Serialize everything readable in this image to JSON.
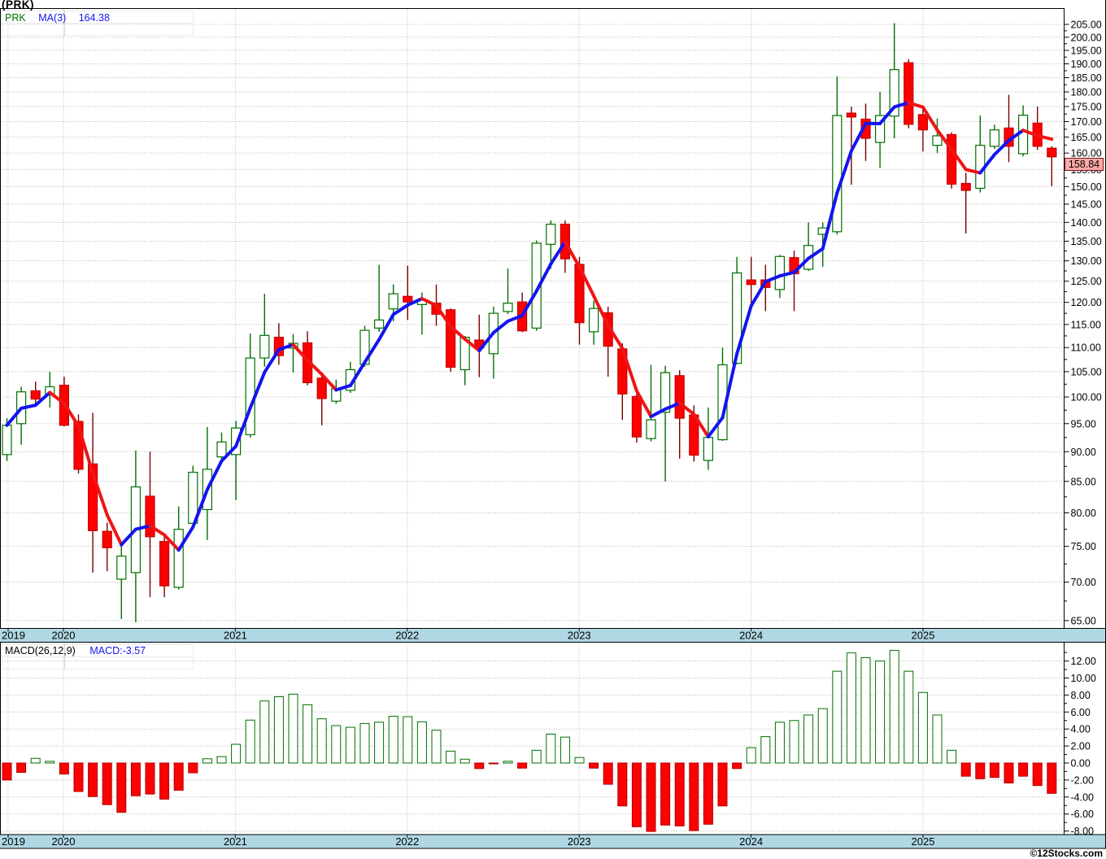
{
  "window": {
    "title": "(PRK)"
  },
  "main_chart": {
    "legend": {
      "symbol": "PRK",
      "ma_label": "MA(3)",
      "ma_value": "164.38"
    },
    "last_price": "158.84",
    "y_axis_labels": [
      "205.00",
      "200.00",
      "195.00",
      "190.00",
      "185.00",
      "180.00",
      "175.00",
      "170.00",
      "165.00",
      "160.00",
      "155.00",
      "150.00",
      "145.00",
      "140.00",
      "135.00",
      "130.00",
      "125.00",
      "120.00",
      "115.00",
      "110.00",
      "105.00",
      "100.00",
      "95.00",
      "90.00",
      "85.00",
      "80.00",
      "75.00",
      "70.00",
      "65.00"
    ]
  },
  "macd_chart": {
    "legend": {
      "label": "MACD(26,12,9)",
      "value_label": "MACD:-3.57"
    },
    "y_axis_labels": [
      "12.00",
      "10.00",
      "8.00",
      "6.00",
      "4.00",
      "2.00",
      "0.00",
      "-2.00",
      "-4.00",
      "-6.00",
      "-8.00"
    ]
  },
  "x_axis": {
    "years": [
      "2019",
      "2020",
      "2021",
      "2022",
      "2023",
      "2024",
      "2025"
    ]
  },
  "footer": {
    "credit": "©12Stocks.com"
  },
  "colors": {
    "up_border": "#007000",
    "up_fill": "#FFFFFF",
    "up_wick": "#007000",
    "down_fill": "#FF0000",
    "down_border": "#C40000",
    "down_wick": "#7A0000",
    "ma_up": "#1414F0",
    "ma_down": "#F01414",
    "band": "#B0D8E4",
    "grid": "#B8B8B8",
    "axis": "#000000",
    "macd_pos_border": "#006F00",
    "macd_pos_fill": "#FFFFFF",
    "macd_neg_fill": "#FF0000",
    "macd_neg_border": "#B00000",
    "badge_bg": "#FFA8A8",
    "badge_border": "#7C1010",
    "legend_symbol": "#007000",
    "legend_value": "#1414F0"
  },
  "chart_data": [
    {
      "type": "candlestick",
      "symbol": "PRK",
      "interval": "monthly",
      "start_month": "2019-09",
      "end_month": "2025-10",
      "yscale": "log",
      "ylim": [
        65,
        205
      ],
      "y_tick_step": 5,
      "last_close": 158.84,
      "ohlc": [
        [
          89.5,
          96.0,
          88.4,
          94.7
        ],
        [
          95.0,
          102.0,
          91.2,
          101.0
        ],
        [
          101.2,
          103.0,
          98.3,
          99.6
        ],
        [
          100.4,
          105.0,
          98.0,
          102.0
        ],
        [
          102.3,
          104.0,
          94.5,
          94.7
        ],
        [
          95.4,
          96.7,
          86.3,
          87.0
        ],
        [
          87.9,
          97.0,
          71.3,
          77.3
        ],
        [
          77.2,
          78.5,
          71.5,
          74.8
        ],
        [
          70.4,
          75.0,
          65.2,
          73.6
        ],
        [
          71.3,
          90.2,
          64.8,
          84.1
        ],
        [
          82.6,
          90.0,
          68.0,
          76.4
        ],
        [
          75.7,
          76.5,
          68.0,
          69.5
        ],
        [
          69.3,
          81.0,
          69.0,
          77.5
        ],
        [
          78.4,
          87.6,
          77.9,
          86.5
        ],
        [
          80.5,
          94.4,
          75.9,
          87.0
        ],
        [
          89.1,
          93.4,
          88.4,
          91.7
        ],
        [
          89.5,
          95.5,
          82.0,
          94.2
        ],
        [
          93.0,
          113.0,
          92.5,
          107.8
        ],
        [
          107.8,
          122.0,
          106.0,
          112.6
        ],
        [
          112.2,
          115.3,
          106.4,
          108.3
        ],
        [
          109.9,
          112.9,
          104.8,
          110.9
        ],
        [
          111.0,
          113.5,
          102.3,
          102.8
        ],
        [
          103.7,
          104.2,
          94.7,
          99.7
        ],
        [
          99.2,
          103.4,
          98.7,
          101.6
        ],
        [
          101.3,
          107.0,
          100.8,
          105.4
        ],
        [
          106.5,
          114.7,
          106.0,
          113.7
        ],
        [
          114.2,
          129.0,
          113.4,
          116.0
        ],
        [
          118.5,
          124.2,
          115.7,
          122.0
        ],
        [
          121.4,
          128.8,
          116.0,
          120.1
        ],
        [
          119.5,
          122.3,
          112.8,
          120.5
        ],
        [
          119.8,
          124.2,
          114.7,
          117.3
        ],
        [
          118.3,
          118.6,
          105.0,
          105.9
        ],
        [
          105.4,
          112.5,
          102.3,
          112.2
        ],
        [
          111.6,
          117.2,
          103.9,
          109.9
        ],
        [
          108.7,
          119.0,
          103.6,
          117.5
        ],
        [
          117.9,
          128.1,
          117.3,
          119.8
        ],
        [
          120.1,
          122.3,
          113.3,
          113.6
        ],
        [
          114.2,
          135.2,
          113.6,
          134.5
        ],
        [
          134.2,
          140.5,
          128.0,
          139.5
        ],
        [
          139.5,
          140.5,
          127.0,
          130.5
        ],
        [
          129.1,
          131.0,
          110.6,
          115.4
        ],
        [
          113.4,
          120.4,
          110.6,
          118.6
        ],
        [
          117.6,
          119.0,
          104.0,
          110.3
        ],
        [
          109.7,
          110.9,
          95.7,
          100.6
        ],
        [
          100.1,
          100.6,
          91.6,
          92.6
        ],
        [
          92.3,
          106.4,
          91.8,
          95.7
        ],
        [
          97.1,
          106.2,
          85.0,
          104.8
        ],
        [
          104.2,
          105.3,
          88.8,
          96.0
        ],
        [
          96.6,
          98.4,
          88.3,
          89.4
        ],
        [
          88.5,
          98.0,
          86.9,
          92.5
        ],
        [
          92.1,
          110.0,
          91.9,
          106.4
        ],
        [
          106.7,
          131.0,
          106.5,
          127.0
        ],
        [
          125.3,
          131.0,
          118.3,
          124.2
        ],
        [
          125.3,
          129.0,
          118.0,
          123.5
        ],
        [
          123.0,
          131.5,
          121.0,
          131.1
        ],
        [
          130.8,
          132.6,
          118.0,
          126.8
        ],
        [
          127.9,
          140.0,
          127.5,
          133.9
        ],
        [
          136.8,
          140.0,
          128.5,
          138.5
        ],
        [
          137.5,
          185.5,
          136.8,
          172.0
        ],
        [
          172.8,
          175.0,
          150.5,
          171.5
        ],
        [
          170.8,
          176.0,
          157.6,
          164.6
        ],
        [
          163.3,
          180.0,
          155.5,
          172.0
        ],
        [
          171.8,
          205.5,
          164.6,
          187.9
        ],
        [
          190.4,
          191.7,
          167.8,
          169.1
        ],
        [
          172.3,
          175.0,
          160.5,
          167.3
        ],
        [
          162.4,
          171.0,
          160.0,
          165.4
        ],
        [
          165.8,
          166.5,
          149.4,
          150.7
        ],
        [
          150.9,
          154.0,
          137.0,
          148.9
        ],
        [
          149.5,
          172.0,
          148.3,
          162.4
        ],
        [
          162.1,
          169.0,
          161.3,
          167.3
        ],
        [
          167.9,
          179.0,
          157.2,
          162.1
        ],
        [
          159.8,
          175.4,
          159.0,
          172.1
        ],
        [
          169.5,
          175.0,
          161.0,
          162.1
        ],
        [
          161.5,
          162.1,
          150.1,
          158.84
        ]
      ],
      "overlay_series": {
        "name": "MA(3)",
        "derived": "3-month moving average of close, blue when rising / red when falling",
        "last": 164.38
      }
    },
    {
      "type": "bar",
      "name": "MACD(26,12,9)",
      "interval": "monthly",
      "start_month": "2019-09",
      "ylim": [
        -8,
        13.5
      ],
      "y_tick_step": 2,
      "last": -3.57,
      "values": [
        -2.0,
        -1.1,
        0.55,
        0.2,
        -1.3,
        -3.35,
        -3.95,
        -4.9,
        -5.8,
        -3.85,
        -3.65,
        -4.25,
        -3.2,
        -1.15,
        0.5,
        0.75,
        2.2,
        5.05,
        7.3,
        7.8,
        8.1,
        6.85,
        5.2,
        4.4,
        4.2,
        4.65,
        4.8,
        5.5,
        5.45,
        4.85,
        3.85,
        1.4,
        0.45,
        -0.65,
        -0.1,
        0.2,
        -0.6,
        1.5,
        3.4,
        3.05,
        0.65,
        -0.6,
        -2.5,
        -5.05,
        -7.5,
        -8.05,
        -7.3,
        -7.4,
        -7.95,
        -7.2,
        -5.05,
        -0.65,
        1.8,
        3.1,
        4.8,
        5.0,
        5.65,
        6.4,
        10.8,
        12.95,
        12.4,
        12.0,
        13.25,
        10.8,
        8.3,
        5.65,
        1.5,
        -1.55,
        -1.85,
        -1.7,
        -2.35,
        -1.55,
        -2.65,
        -3.57
      ]
    }
  ]
}
